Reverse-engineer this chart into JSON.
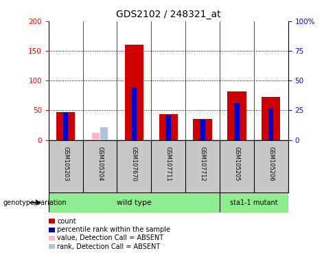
{
  "title": "GDS2102 / 248321_at",
  "samples": [
    "GSM105203",
    "GSM105204",
    "GSM107670",
    "GSM107711",
    "GSM107712",
    "GSM105205",
    "GSM105206"
  ],
  "count_values": [
    47,
    0,
    160,
    43,
    35,
    82,
    72
  ],
  "percentile_values": [
    23,
    0,
    44,
    21,
    17,
    31,
    27
  ],
  "absent_value": [
    0,
    12,
    0,
    0,
    0,
    0,
    0
  ],
  "absent_rank": [
    0,
    11,
    0,
    0,
    0,
    0,
    0
  ],
  "is_absent": [
    false,
    true,
    false,
    false,
    false,
    false,
    false
  ],
  "genotype_groups": [
    {
      "label": "wild type",
      "cols": 5,
      "color": "#90EE90"
    },
    {
      "label": "sta1-1 mutant",
      "cols": 2,
      "color": "#90EE90"
    }
  ],
  "ylim_left": [
    0,
    200
  ],
  "ylim_right": [
    0,
    100
  ],
  "yticks_left": [
    0,
    50,
    100,
    150,
    200
  ],
  "yticks_right": [
    0,
    25,
    50,
    75,
    100
  ],
  "ytick_labels_left": [
    "0",
    "50",
    "100",
    "150",
    "200"
  ],
  "ytick_labels_right": [
    "0",
    "25",
    "50",
    "75",
    "100%"
  ],
  "count_color": "#CC0000",
  "percentile_color": "#0000CC",
  "absent_value_color": "#FFB6C1",
  "absent_rank_color": "#B0C4DE",
  "cell_bg": "#C8C8C8",
  "plot_bg": "#FFFFFF",
  "title_fontsize": 10,
  "tick_fontsize": 7.5,
  "sample_fontsize": 6,
  "legend_fontsize": 7,
  "bar_width": 0.55,
  "percentile_bar_width": 0.15
}
